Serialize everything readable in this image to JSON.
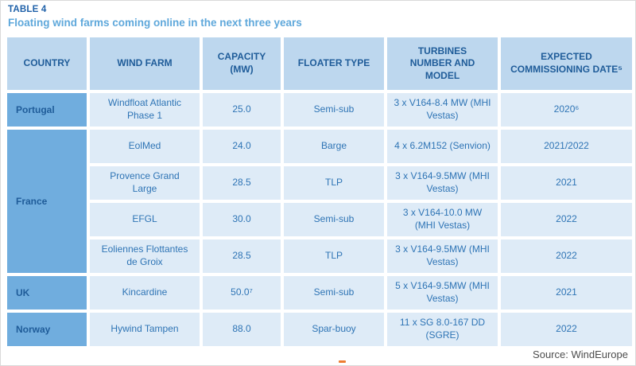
{
  "page": {
    "table_label": "TABLE 4",
    "title": "Floating wind farms coming online in the next three years",
    "source": "Source: WindEurope"
  },
  "colors": {
    "header_bg": "#BDD7EE",
    "country_bg": "#70ADDE",
    "cell_bg": "#DEEBF7",
    "header_text": "#1F5C99",
    "cell_text": "#2E74B5",
    "title_blue": "#1F61A9",
    "subtitle_blue": "#5FA8DB",
    "source_gray": "#4D4D4D",
    "accent_orange": "#ED7D31"
  },
  "chart_data": {
    "type": "table",
    "title": "Floating wind farms coming online in the next three years",
    "headers": [
      "COUNTRY",
      "WIND FARM",
      "CAPACITY (MW)",
      "FLOATER TYPE",
      "TURBINES NUMBER AND MODEL",
      "EXPECTED COMMISSIONING DATE⁵"
    ],
    "rows": [
      [
        "Portugal",
        "Windfloat Atlantic Phase 1",
        "25.0",
        "Semi-sub",
        "3 x V164-8.4 MW (MHI Vestas)",
        "2020⁶"
      ],
      [
        "France",
        "EolMed",
        "24.0",
        "Barge",
        "4 x 6.2M152 (Senvion)",
        "2021/2022"
      ],
      [
        "France",
        "Provence Grand Large",
        "28.5",
        "TLP",
        "3 x V164-9.5MW (MHI Vestas)",
        "2021"
      ],
      [
        "France",
        "EFGL",
        "30.0",
        "Semi-sub",
        "3 x V164-10.0 MW (MHI Vestas)",
        "2022"
      ],
      [
        "France",
        "Eoliennes Flottantes de Groix",
        "28.5",
        "TLP",
        "3 x V164-9.5MW (MHI Vestas)",
        "2022"
      ],
      [
        "UK",
        "Kincardine",
        "50.0⁷",
        "Semi-sub",
        "5 x V164-9.5MW (MHI Vestas)",
        "2021"
      ],
      [
        "Norway",
        "Hywind Tampen",
        "88.0",
        "Spar-buoy",
        "11 x SG 8.0-167 DD (SGRE)",
        "2022"
      ]
    ]
  },
  "table": {
    "headers": {
      "country": "COUNTRY",
      "wind_farm": "WIND FARM",
      "capacity": "CAPACITY (MW)",
      "floater": "FLOATER TYPE",
      "turbines": "TURBINES NUMBER AND MODEL",
      "date": "EXPECTED COMMISSIONING DATE⁵"
    },
    "rows": [
      {
        "country": "Portugal",
        "wind_farm": "Windfloat Atlantic Phase 1",
        "capacity": "25.0",
        "floater": "Semi-sub",
        "turbines": "3 x V164-8.4 MW (MHI Vestas)",
        "date": "2020⁶"
      },
      {
        "country": "France",
        "wind_farm": "EolMed",
        "capacity": "24.0",
        "floater": "Barge",
        "turbines": "4 x 6.2M152 (Senvion)",
        "date": "2021/2022"
      },
      {
        "wind_farm": "Provence Grand Large",
        "capacity": "28.5",
        "floater": "TLP",
        "turbines": "3 x V164-9.5MW (MHI Vestas)",
        "date": "2021"
      },
      {
        "wind_farm": "EFGL",
        "capacity": "30.0",
        "floater": "Semi-sub",
        "turbines": "3 x V164-10.0 MW (MHI Vestas)",
        "date": "2022"
      },
      {
        "wind_farm": "Eoliennes Flottantes de Groix",
        "capacity": "28.5",
        "floater": "TLP",
        "turbines": "3 x V164-9.5MW (MHI Vestas)",
        "date": "2022"
      },
      {
        "country": "UK",
        "wind_farm": "Kincardine",
        "capacity": "50.0⁷",
        "floater": "Semi-sub",
        "turbines": "5 x V164-9.5MW (MHI Vestas)",
        "date": "2021"
      },
      {
        "country": "Norway",
        "wind_farm": "Hywind Tampen",
        "capacity": "88.0",
        "floater": "Spar-buoy",
        "turbines": "11 x SG 8.0-167 DD (SGRE)",
        "date": "2022"
      }
    ]
  }
}
